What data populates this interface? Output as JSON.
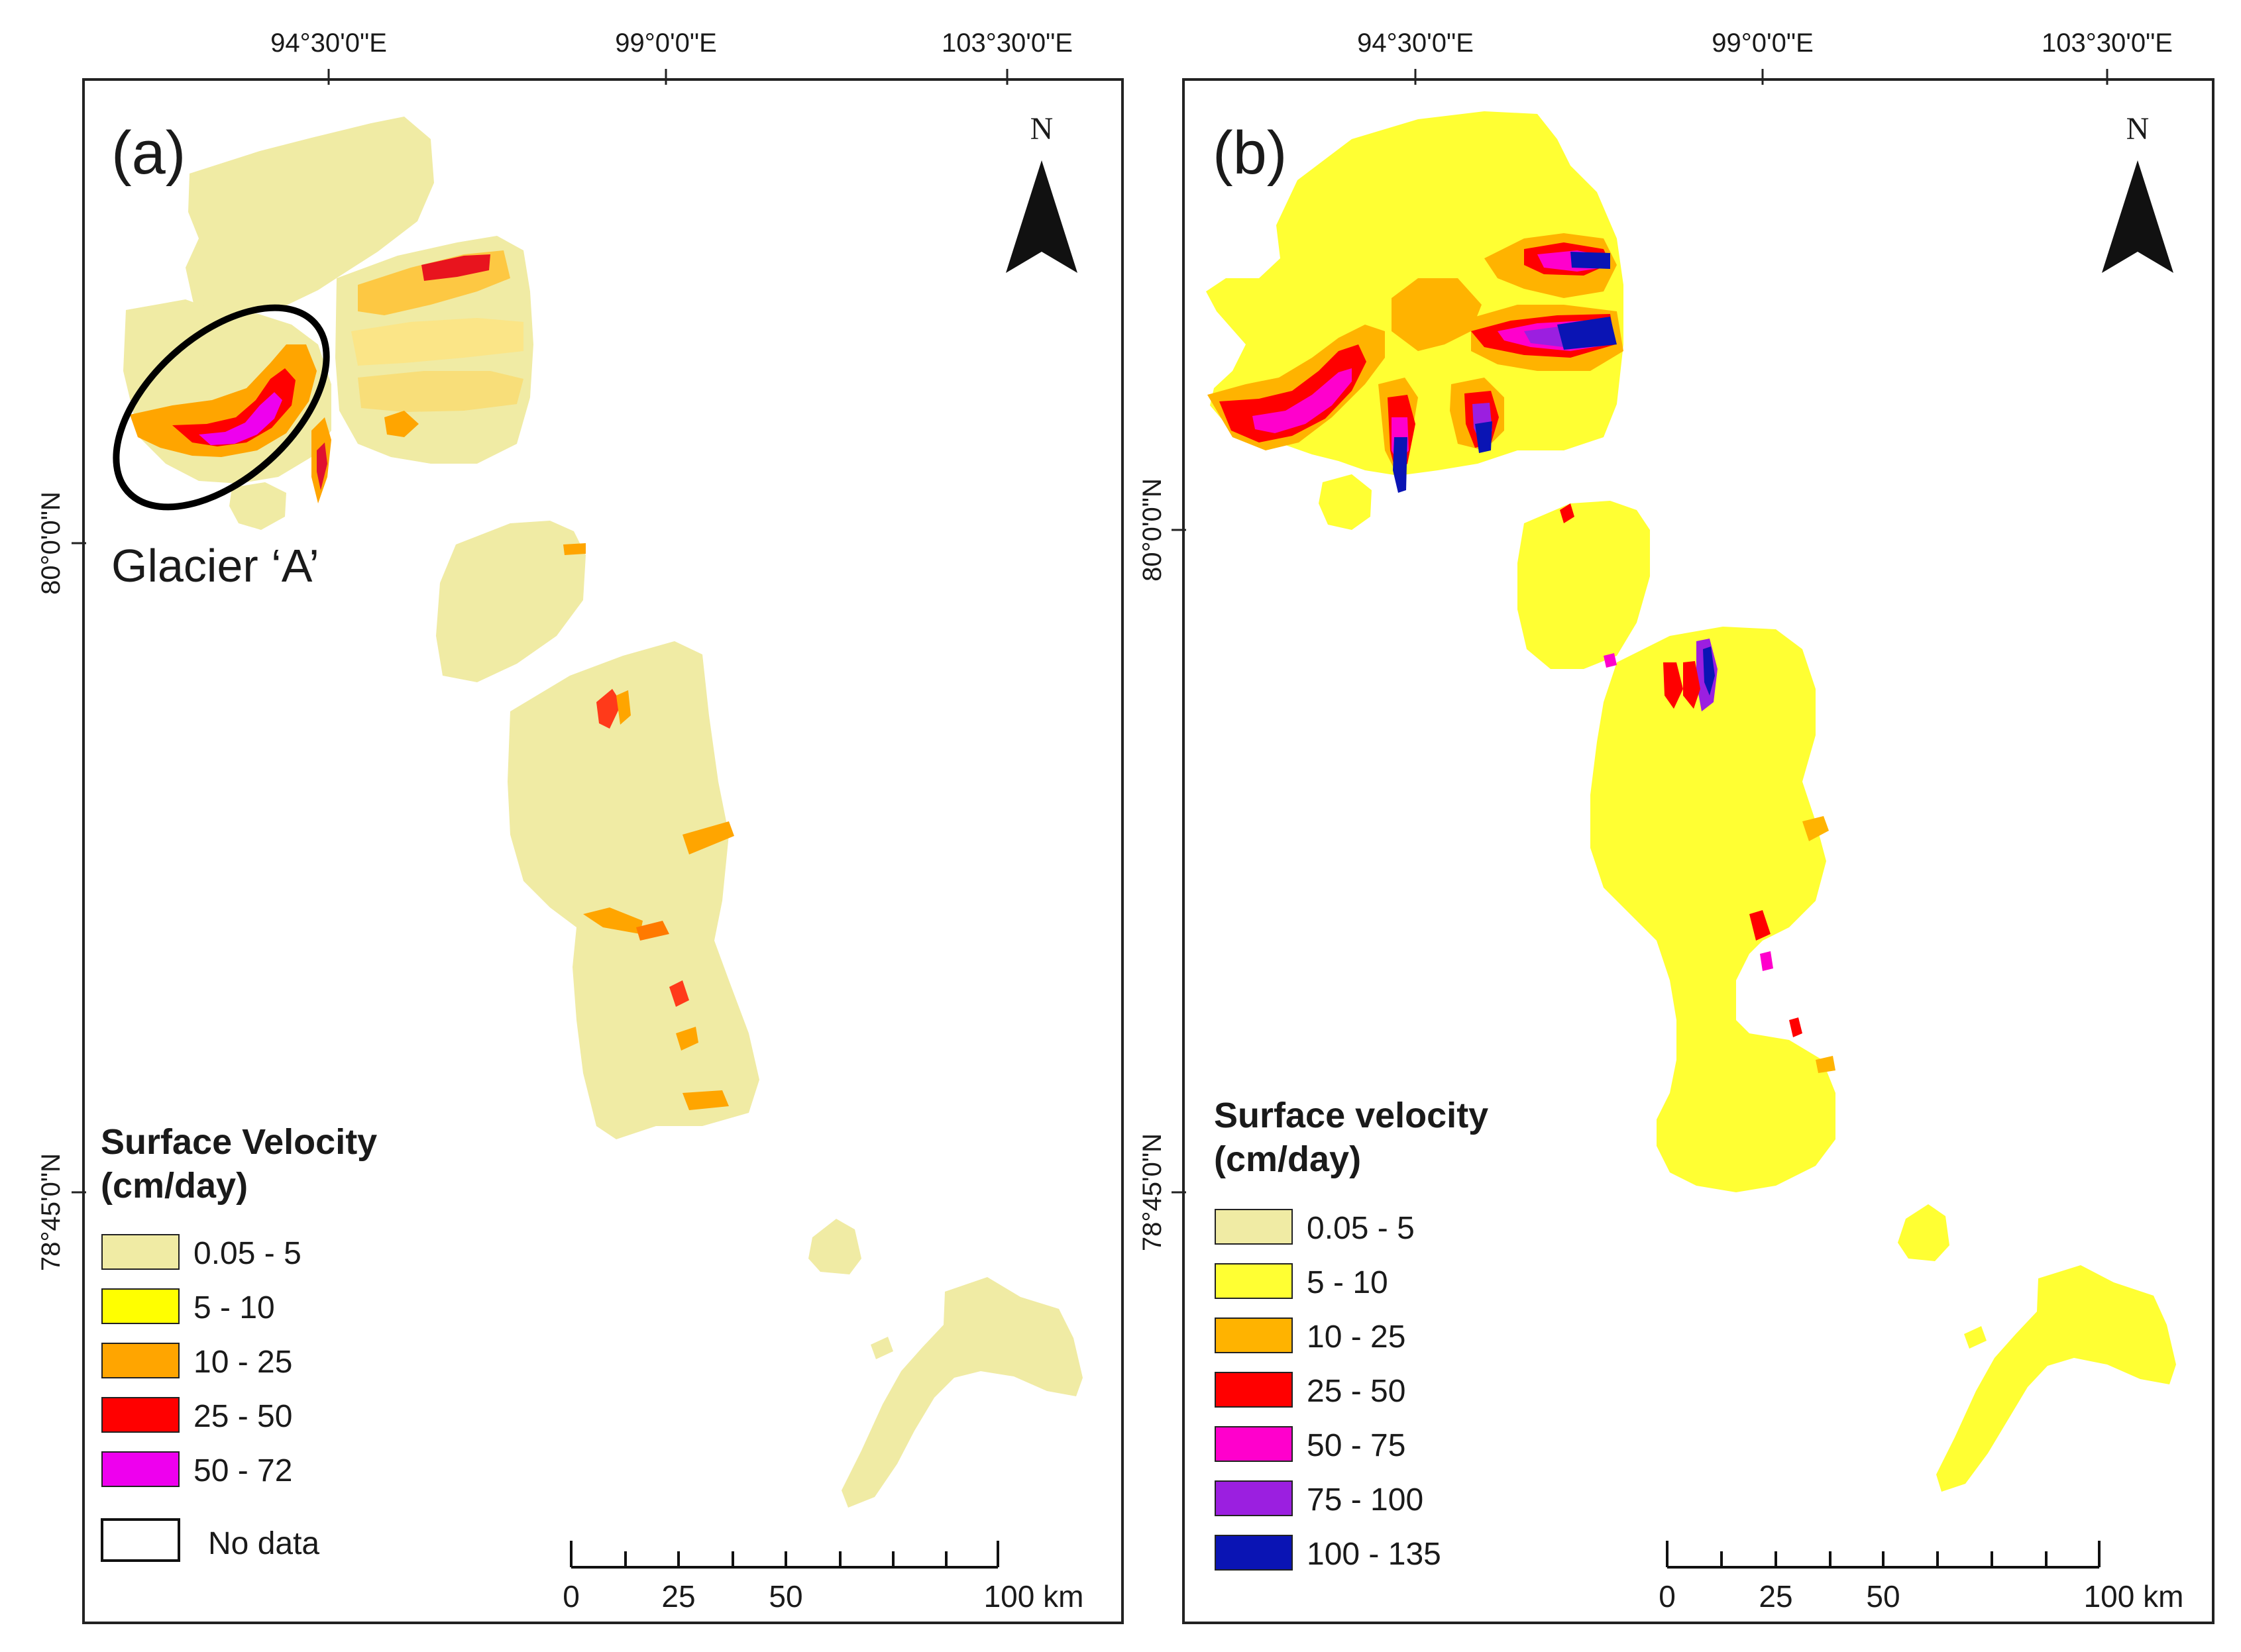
{
  "figure": {
    "panels": [
      {
        "id": "a",
        "letter": "(a)",
        "lon_labels": [
          "94°30'0\"E",
          "99°0'0\"E",
          "103°30'0\"E"
        ],
        "lat_labels": [
          "80°0'0\"N",
          "78°45'0\"N"
        ],
        "north_label": "N",
        "callout": "Glacier ‘A’",
        "legend": {
          "title_line1": "Surface Velocity",
          "title_line2": "(cm/day)",
          "classes": [
            {
              "label": "0.05 - 5",
              "color": "#F0EBA4"
            },
            {
              "label": "5 - 10",
              "color": "#FFFF00"
            },
            {
              "label": "10 - 25",
              "color": "#FFA500"
            },
            {
              "label": "25 - 50",
              "color": "#FF0000"
            },
            {
              "label": "50 - 72",
              "color": "#EE00EE"
            }
          ],
          "nodata_label": "No data"
        },
        "scale": {
          "ticks": [
            "0",
            "25",
            "50",
            "100 km"
          ]
        }
      },
      {
        "id": "b",
        "letter": "(b)",
        "lon_labels": [
          "94°30'0\"E",
          "99°0'0\"E",
          "103°30'0\"E"
        ],
        "lat_labels": [
          "80°0'0\"N",
          "78°45'0\"N"
        ],
        "north_label": "N",
        "legend": {
          "title_line1": "Surface velocity",
          "title_line2": "(cm/day)",
          "classes": [
            {
              "label": "0.05 - 5",
              "color": "#F0EBA4"
            },
            {
              "label": "5 - 10",
              "color": "#FFFF33"
            },
            {
              "label": "10 - 25",
              "color": "#FFB300"
            },
            {
              "label": "25 - 50",
              "color": "#FF0000"
            },
            {
              "label": "50 - 75",
              "color": "#FF00CC"
            },
            {
              "label": "75 - 100",
              "color": "#9B1FE0"
            },
            {
              "label": "100 - 135",
              "color": "#0A14B4"
            }
          ]
        },
        "scale": {
          "ticks": [
            "0",
            "25",
            "50",
            "100 km"
          ]
        }
      }
    ]
  }
}
